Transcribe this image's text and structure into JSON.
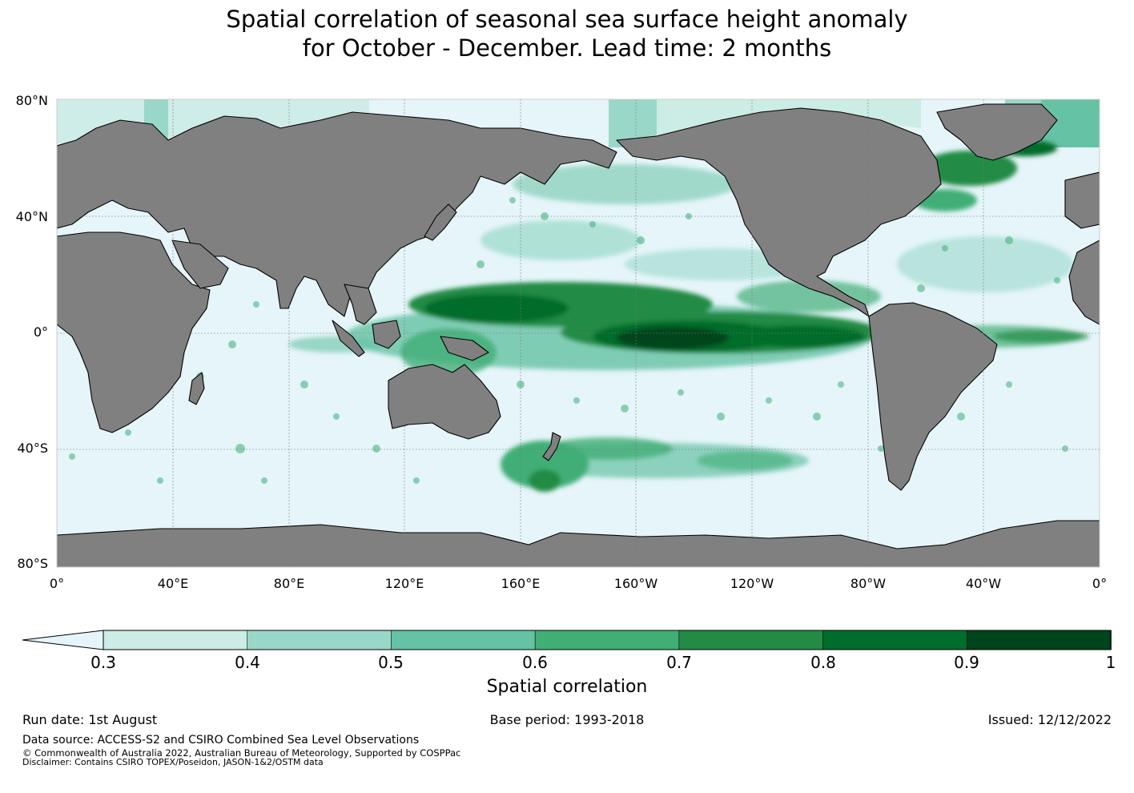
{
  "title": {
    "line1": "Spatial correlation of seasonal sea surface height anomaly",
    "line2": "for October - December. Lead time: 2 months"
  },
  "map": {
    "lat_labels": [
      "80°N",
      "40°N",
      "0°",
      "40°S",
      "80°S"
    ],
    "lon_labels": [
      "0°",
      "40°E",
      "80°E",
      "120°E",
      "160°E",
      "160°W",
      "120°W",
      "80°W",
      "40°W",
      "0°"
    ],
    "colors": {
      "ocean": "#e5f5f9",
      "land": "#808080",
      "coast": "#000000",
      "grid": "#7a7a7a"
    }
  },
  "colorbar": {
    "ticks": [
      "0.3",
      "0.4",
      "0.5",
      "0.6",
      "0.7",
      "0.8",
      "0.9",
      "1"
    ],
    "colors": [
      "#ccece6",
      "#99d8c9",
      "#66c2a4",
      "#41ae76",
      "#238b45",
      "#006d2c",
      "#00441b"
    ],
    "under_color": "#e5f5f9",
    "label": "Spatial correlation"
  },
  "footer": {
    "run_date": "Run date: 1st August",
    "base_period": "Base period: 1993-2018",
    "issued": "Issued: 12/12/2022",
    "data_source": "Data source: ACCESS-S2 and CSIRO Combined Sea Level Observations",
    "copyright": "© Commonwealth of Australia 2022, Australian Bureau of Meteorology, Supported by COSPPac",
    "disclaimer": "Disclaimer: Contains CSIRO TOPEX/Poseidon, JASON-1&2/OSTM data"
  }
}
